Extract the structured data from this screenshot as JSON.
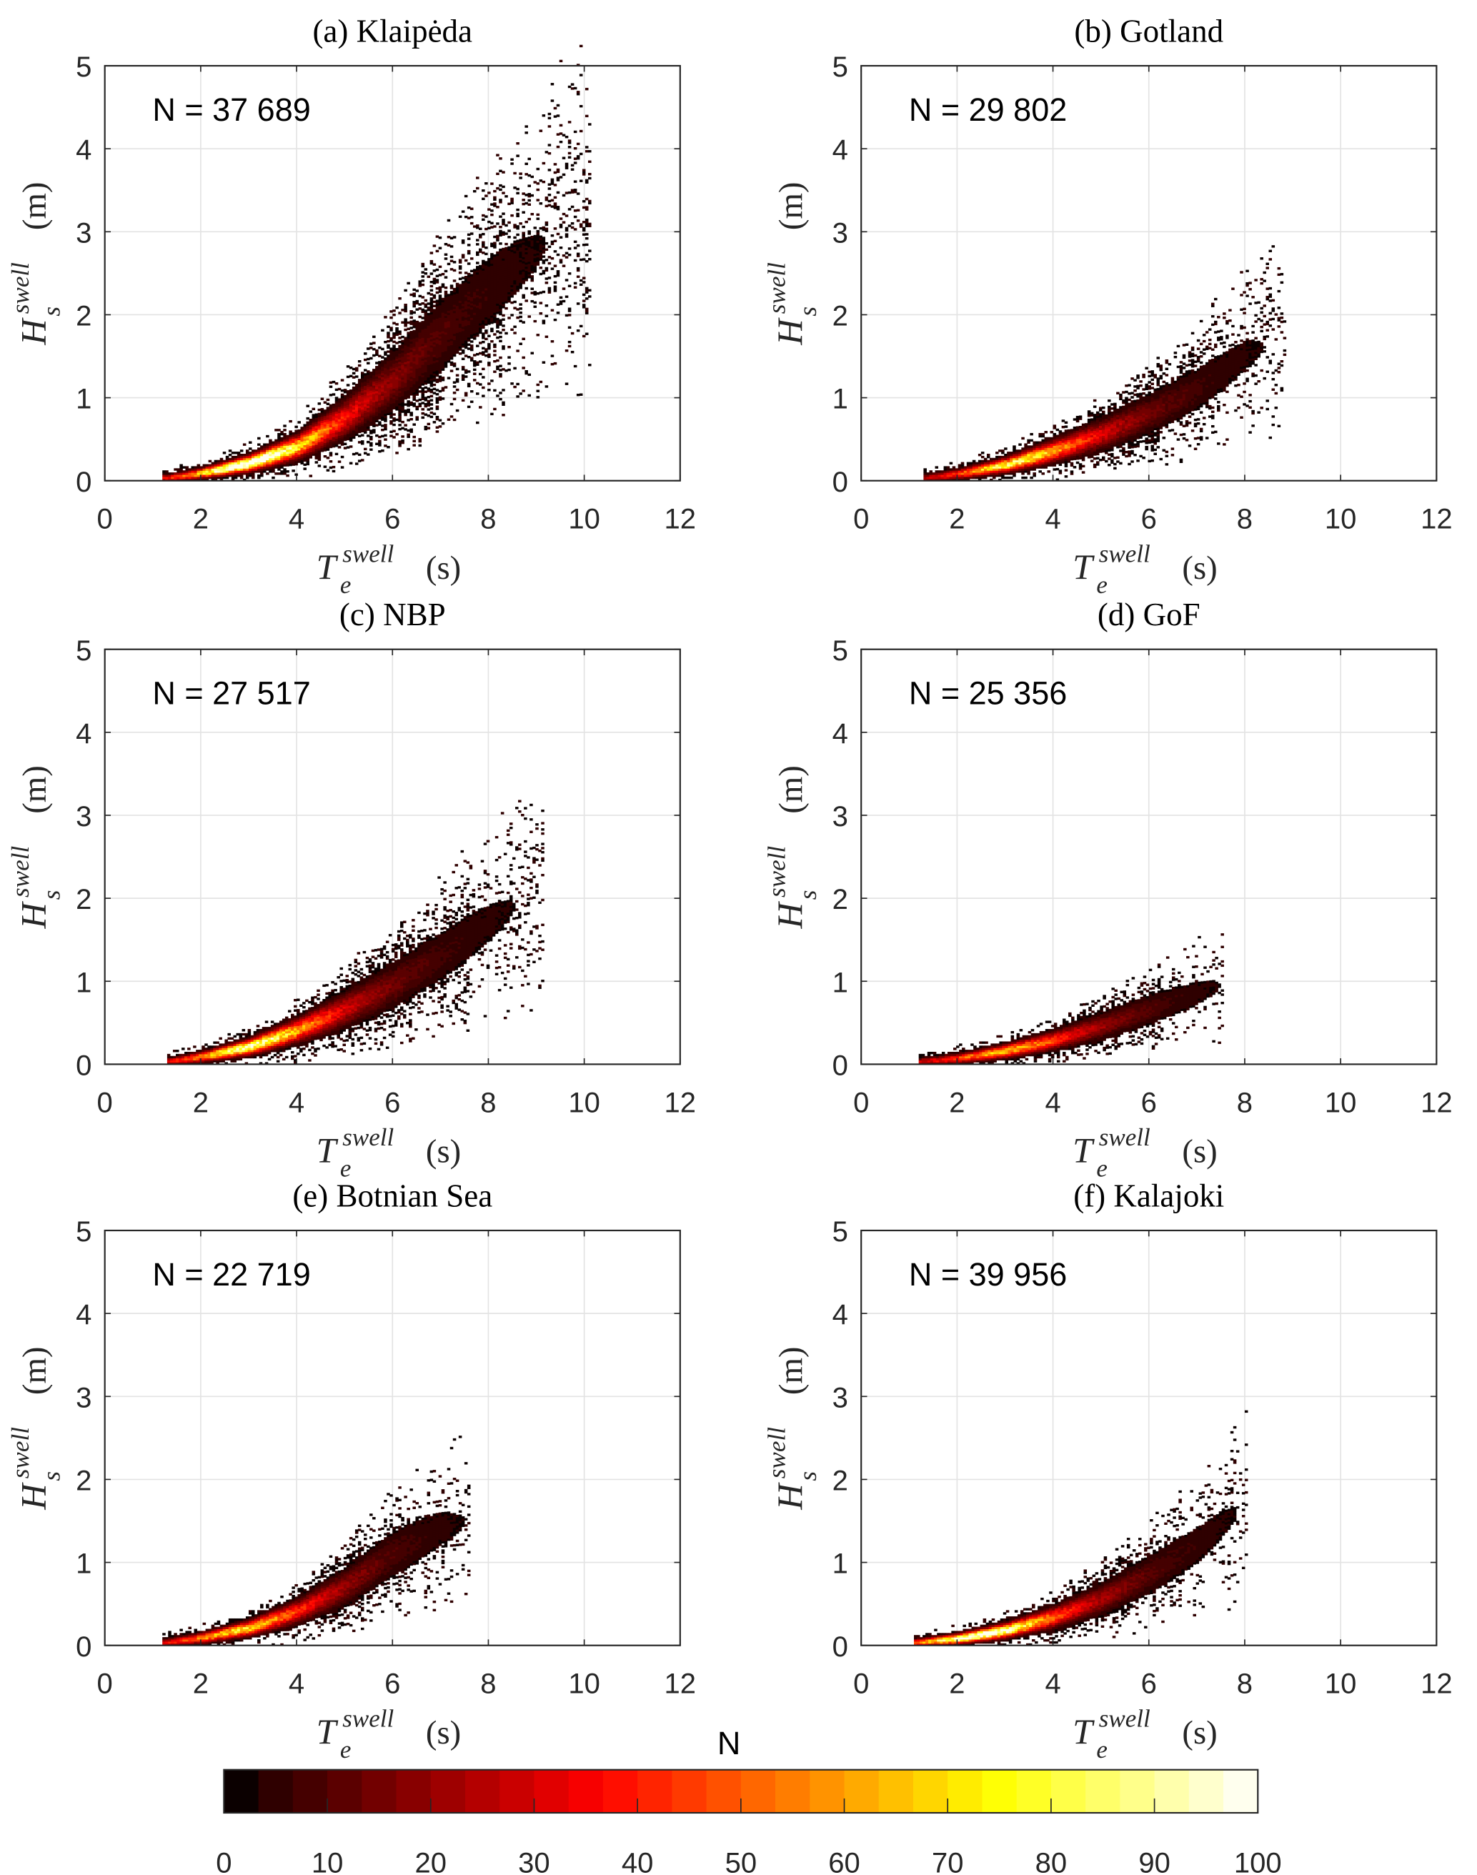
{
  "chart_data": [
    {
      "type": "heatmap",
      "title": "(a) Klaipėda",
      "annotation": "N = 37 689",
      "xlim": [
        0,
        12
      ],
      "ylim": [
        0,
        5
      ],
      "xticks": [
        0,
        2,
        4,
        6,
        8,
        10,
        12
      ],
      "yticks": [
        0,
        1,
        2,
        3,
        4,
        5
      ],
      "te_range": [
        1.2,
        10.1
      ],
      "peak_count": 100,
      "peak_te": 3.0,
      "ridge": [
        [
          1.3,
          0.02
        ],
        [
          2,
          0.08
        ],
        [
          3,
          0.2
        ],
        [
          4,
          0.4
        ],
        [
          5,
          0.75
        ],
        [
          6,
          1.2
        ],
        [
          7,
          1.75
        ],
        [
          8,
          2.3
        ],
        [
          9.5,
          3.0
        ],
        [
          10,
          3.1
        ]
      ]
    },
    {
      "type": "heatmap",
      "title": "(b) Gotland",
      "annotation": "N = 29 802",
      "xlim": [
        0,
        12
      ],
      "ylim": [
        0,
        5
      ],
      "xticks": [
        0,
        2,
        4,
        6,
        8,
        10,
        12
      ],
      "yticks": [
        0,
        1,
        2,
        3,
        4,
        5
      ],
      "te_range": [
        1.3,
        8.8
      ],
      "peak_count": 70,
      "peak_te": 3.2,
      "ridge": [
        [
          1.3,
          0.02
        ],
        [
          2,
          0.07
        ],
        [
          3,
          0.18
        ],
        [
          4,
          0.35
        ],
        [
          5,
          0.55
        ],
        [
          6,
          0.8
        ],
        [
          7,
          1.1
        ],
        [
          8,
          1.5
        ],
        [
          8.8,
          1.7
        ]
      ]
    },
    {
      "type": "heatmap",
      "title": "(c) NBP",
      "annotation": "N = 27 517",
      "xlim": [
        0,
        12
      ],
      "ylim": [
        0,
        5
      ],
      "xticks": [
        0,
        2,
        4,
        6,
        8,
        10,
        12
      ],
      "yticks": [
        0,
        1,
        2,
        3,
        4,
        5
      ],
      "te_range": [
        1.3,
        9.1
      ],
      "peak_count": 80,
      "peak_te": 3.0,
      "ridge": [
        [
          1.3,
          0.02
        ],
        [
          2,
          0.08
        ],
        [
          3,
          0.2
        ],
        [
          4,
          0.4
        ],
        [
          5,
          0.65
        ],
        [
          6,
          0.95
        ],
        [
          7,
          1.3
        ],
        [
          8,
          1.7
        ],
        [
          9.1,
          2.1
        ]
      ]
    },
    {
      "type": "heatmap",
      "title": "(d) GoF",
      "annotation": "N = 25 356",
      "xlim": [
        0,
        12
      ],
      "ylim": [
        0,
        5
      ],
      "xticks": [
        0,
        2,
        4,
        6,
        8,
        10,
        12
      ],
      "yticks": [
        0,
        1,
        2,
        3,
        4,
        5
      ],
      "te_range": [
        1.2,
        7.5
      ],
      "peak_count": 55,
      "peak_te": 3.0,
      "ridge": [
        [
          1.2,
          0.02
        ],
        [
          2,
          0.06
        ],
        [
          3,
          0.15
        ],
        [
          4,
          0.28
        ],
        [
          5,
          0.45
        ],
        [
          6,
          0.65
        ],
        [
          7,
          0.85
        ],
        [
          7.5,
          0.95
        ]
      ]
    },
    {
      "type": "heatmap",
      "title": "(e) Botnian Sea",
      "annotation": "N = 22 719",
      "xlim": [
        0,
        12
      ],
      "ylim": [
        0,
        5
      ],
      "xticks": [
        0,
        2,
        4,
        6,
        8,
        10,
        12
      ],
      "yticks": [
        0,
        1,
        2,
        3,
        4,
        5
      ],
      "te_range": [
        1.2,
        7.6
      ],
      "peak_count": 60,
      "peak_te": 2.8,
      "ridge": [
        [
          1.2,
          0.02
        ],
        [
          2,
          0.08
        ],
        [
          3,
          0.2
        ],
        [
          4,
          0.4
        ],
        [
          5,
          0.7
        ],
        [
          6,
          1.1
        ],
        [
          7,
          1.4
        ],
        [
          7.6,
          1.5
        ]
      ]
    },
    {
      "type": "heatmap",
      "title": "(f) Kalajoki",
      "annotation": "N = 39 956",
      "xlim": [
        0,
        12
      ],
      "ylim": [
        0,
        5
      ],
      "xticks": [
        0,
        2,
        4,
        6,
        8,
        10,
        12
      ],
      "yticks": [
        0,
        1,
        2,
        3,
        4,
        5
      ],
      "te_range": [
        1.1,
        8.0
      ],
      "peak_count": 95,
      "peak_te": 2.5,
      "ridge": [
        [
          1.1,
          0.02
        ],
        [
          2,
          0.07
        ],
        [
          3,
          0.17
        ],
        [
          4,
          0.33
        ],
        [
          5,
          0.55
        ],
        [
          6,
          0.85
        ],
        [
          7,
          1.2
        ],
        [
          8,
          1.7
        ]
      ]
    }
  ],
  "axis_labels": {
    "y_main": "H",
    "y_sub": "s",
    "y_sup": "swell",
    "y_unit": "(m)",
    "x_main": "T",
    "x_sub": "e",
    "x_sup": "swell",
    "x_unit": "(s)"
  },
  "colorbar": {
    "label": "N",
    "range": [
      0,
      100
    ],
    "ticks": [
      0,
      10,
      20,
      30,
      40,
      50,
      60,
      70,
      80,
      90,
      100
    ],
    "levels": 30,
    "colormap": "hot"
  },
  "grid": true
}
